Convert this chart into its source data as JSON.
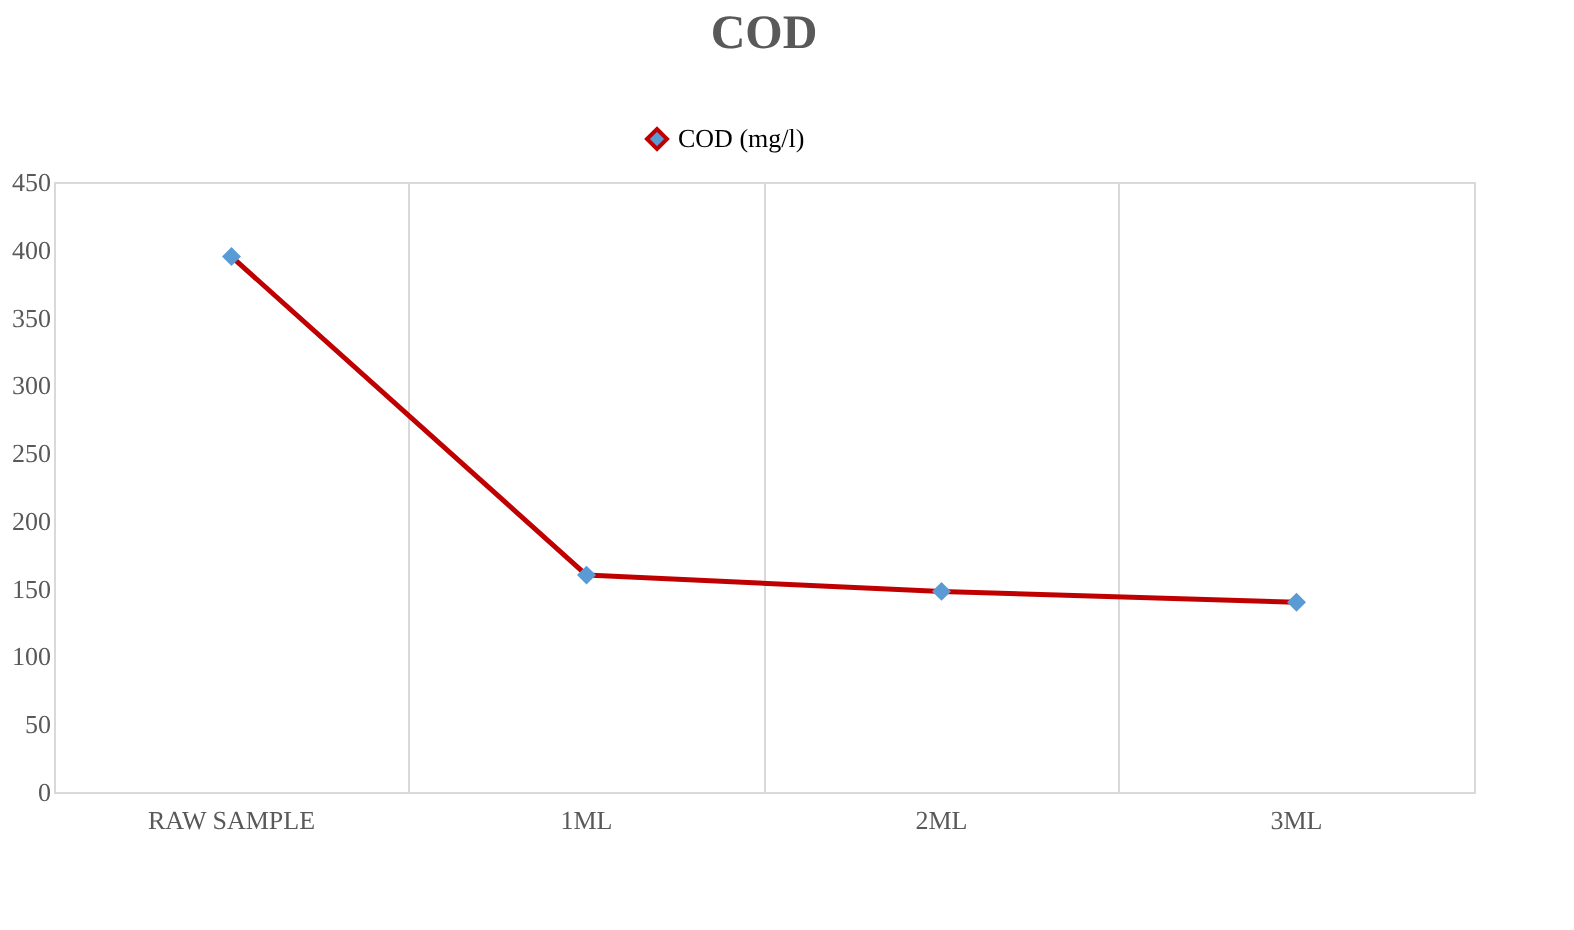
{
  "chart_data": {
    "type": "line",
    "title": "COD",
    "categories": [
      "RAW SAMPLE",
      "1ML",
      "2ML",
      "3ML"
    ],
    "series": [
      {
        "name": "COD (mg/l)",
        "color": "#c00000",
        "values": [
          395,
          160,
          148,
          140
        ]
      }
    ],
    "ylim": [
      0,
      450
    ],
    "yticks": [
      0,
      50,
      100,
      150,
      200,
      250,
      300,
      350,
      400,
      450
    ],
    "grid": "x",
    "legend": "top",
    "marker": "diamond",
    "line_style": "solid"
  }
}
